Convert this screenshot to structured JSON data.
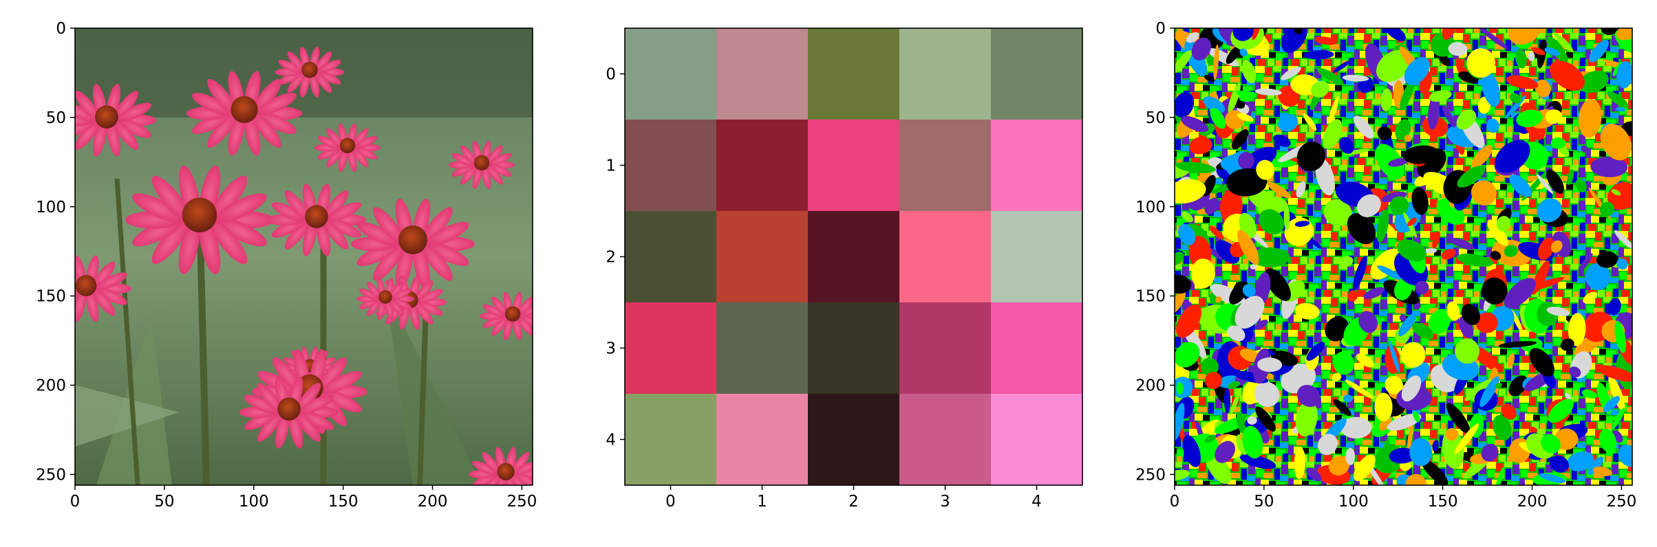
{
  "chart_data": [
    {
      "type": "image",
      "panel": "original-photo",
      "description_visible": "photo of pink coneflowers with green foliage",
      "xlim": [
        0,
        256
      ],
      "ylim": [
        256,
        0
      ],
      "xticks": [
        0,
        50,
        100,
        150,
        200,
        250
      ],
      "yticks": [
        0,
        50,
        100,
        150,
        200,
        250
      ],
      "xtick_labels": [
        "0",
        "50",
        "100",
        "150",
        "200",
        "250"
      ],
      "ytick_labels": [
        "0",
        "50",
        "100",
        "150",
        "200",
        "250"
      ]
    },
    {
      "type": "heatmap",
      "panel": "color-palette-grid",
      "rows": 5,
      "cols": 5,
      "xticks": [
        0,
        1,
        2,
        3,
        4
      ],
      "yticks": [
        0,
        1,
        2,
        3,
        4
      ],
      "xtick_labels": [
        "0",
        "1",
        "2",
        "3",
        "4"
      ],
      "ytick_labels": [
        "0",
        "1",
        "2",
        "3",
        "4"
      ],
      "cells": [
        [
          "#879e87",
          "#be8890",
          "#6a7838",
          "#9db48e",
          "#728667"
        ],
        [
          "#814e51",
          "#8b1f2f",
          "#ec3f7e",
          "#9f6a6a",
          "#fc74bc"
        ],
        [
          "#4b5035",
          "#b94130",
          "#551424",
          "#f96888",
          "#b2c4b2"
        ],
        [
          "#dd355e",
          "#5d6650",
          "#373626",
          "#b13766",
          "#f45aaa"
        ],
        [
          "#89a064",
          "#ea85a5",
          "#2e1719",
          "#ca5b8a",
          "#fc8cd6"
        ]
      ]
    },
    {
      "type": "image",
      "panel": "segmentation-map",
      "xlim": [
        0,
        256
      ],
      "ylim": [
        256,
        0
      ],
      "xticks": [
        0,
        50,
        100,
        150,
        200,
        250
      ],
      "yticks": [
        0,
        50,
        100,
        150,
        200,
        250
      ],
      "xtick_labels": [
        "0",
        "50",
        "100",
        "150",
        "200",
        "250"
      ],
      "ytick_labels": [
        "0",
        "50",
        "100",
        "150",
        "200",
        "250"
      ],
      "palette": [
        "#00c000",
        "#00ff00",
        "#80ff00",
        "#ffff00",
        "#ffa000",
        "#ff2000",
        "#0000d0",
        "#6020c0",
        "#00a0ff",
        "#000000",
        "#d8d8d8"
      ]
    }
  ]
}
